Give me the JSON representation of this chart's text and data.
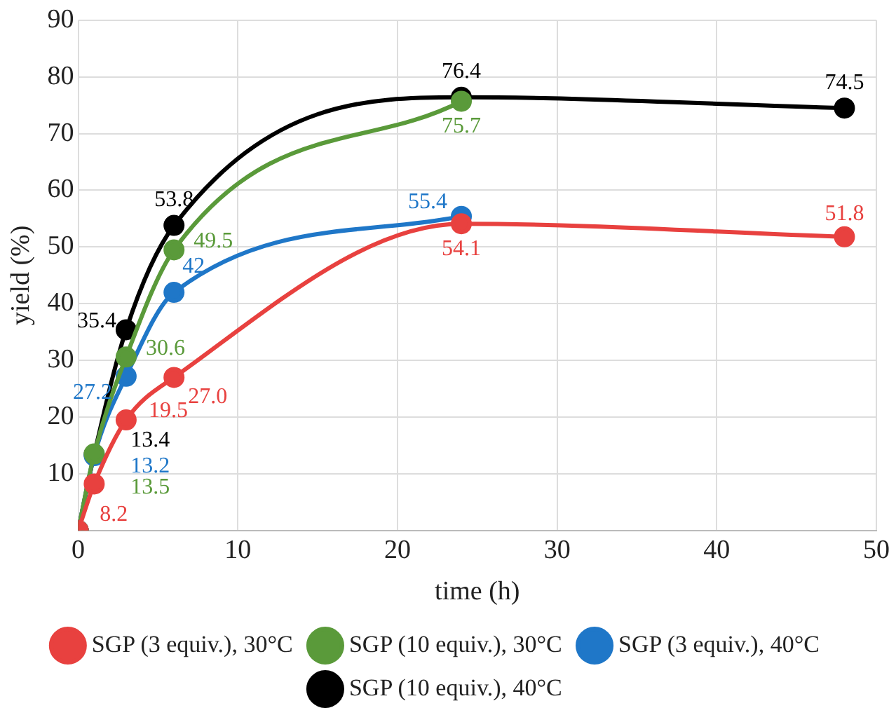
{
  "chart_data": {
    "type": "line",
    "xlabel": "time (h)",
    "ylabel": "yield (%)",
    "x": [
      0,
      1,
      3,
      6,
      24,
      48
    ],
    "xlim": [
      0,
      50
    ],
    "xticks": [
      0,
      10,
      20,
      30,
      40,
      50
    ],
    "ylim": [
      0,
      90
    ],
    "yticks": [
      {
        "value": 0,
        "label": null
      },
      10,
      20,
      30,
      40,
      50,
      60,
      70,
      80,
      90
    ],
    "grid": true,
    "legend": "bottom",
    "marker": "circle",
    "line_style": "solid",
    "series": [
      {
        "name": "SGP (3 equiv.), 30°C",
        "color": "#e8413f",
        "values": [
          0,
          8.2,
          19.5,
          27.0,
          54.1,
          51.8
        ],
        "value_labels": [
          null,
          "8.2",
          "19.5",
          "27.0",
          "54.1",
          "51.8"
        ]
      },
      {
        "name": "SGP (10 equiv.), 30°C",
        "color": "#5a9a3a",
        "values": [
          0,
          13.5,
          30.6,
          49.5,
          75.7,
          null
        ],
        "value_labels": [
          null,
          "13.5",
          "30.6",
          "49.5",
          "75.7",
          null
        ]
      },
      {
        "name": "SGP (3 equiv.), 40°C",
        "color": "#1f77c8",
        "values": [
          0,
          13.2,
          27.2,
          42,
          55.4,
          null
        ],
        "value_labels": [
          null,
          "13.2",
          "27.2",
          "42",
          "55.4",
          null
        ]
      },
      {
        "name": "SGP (10 equiv.), 40°C",
        "color": "#000000",
        "values": [
          0,
          13.4,
          35.4,
          53.8,
          76.4,
          74.5
        ],
        "value_labels": [
          null,
          "13.4",
          "35.4",
          "53.8",
          "76.4",
          "74.5"
        ]
      }
    ]
  }
}
